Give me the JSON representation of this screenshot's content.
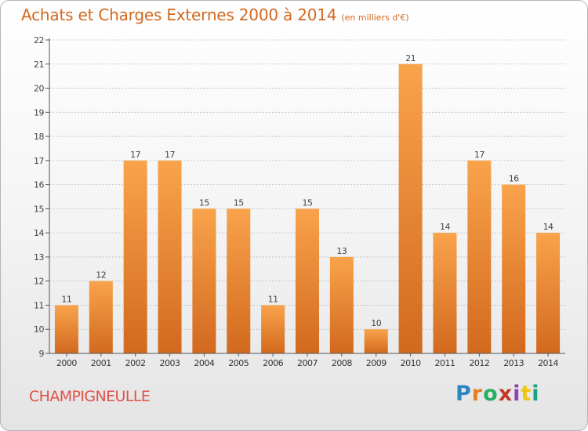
{
  "header": {
    "title": "Achats et Charges Externes 2000 à 2014",
    "subtitle": "(en milliers d'€)"
  },
  "footer": {
    "commune": "CHAMPIGNEULLE",
    "brand_letters": [
      "P",
      "r",
      "o",
      "x",
      "i",
      "t",
      "i"
    ],
    "brand_colors": [
      "#2e86c1",
      "#e67e22",
      "#27ae60",
      "#c0392b",
      "#8e44ad",
      "#f1c40f",
      "#16a085"
    ]
  },
  "colors": {
    "bar_top": "#f9a34b",
    "bar_bottom": "#d2691e",
    "title": "#d2691e",
    "commune": "#e2504a",
    "grid": "#bdbdbd"
  },
  "chart_data": {
    "type": "bar",
    "title": "Achats et Charges Externes 2000 à 2014",
    "subtitle": "(en milliers d'€)",
    "categories": [
      "2000",
      "2001",
      "2002",
      "2003",
      "2004",
      "2005",
      "2006",
      "2007",
      "2008",
      "2009",
      "2010",
      "2011",
      "2012",
      "2013",
      "2014"
    ],
    "values": [
      11,
      12,
      17,
      17,
      15,
      15,
      11,
      15,
      13,
      10,
      21,
      14,
      17,
      16,
      14
    ],
    "ylim": [
      9,
      22
    ],
    "yticks": [
      9,
      10,
      11,
      12,
      13,
      14,
      15,
      16,
      17,
      18,
      19,
      20,
      21,
      22
    ],
    "grid": true,
    "data_labels": true
  }
}
